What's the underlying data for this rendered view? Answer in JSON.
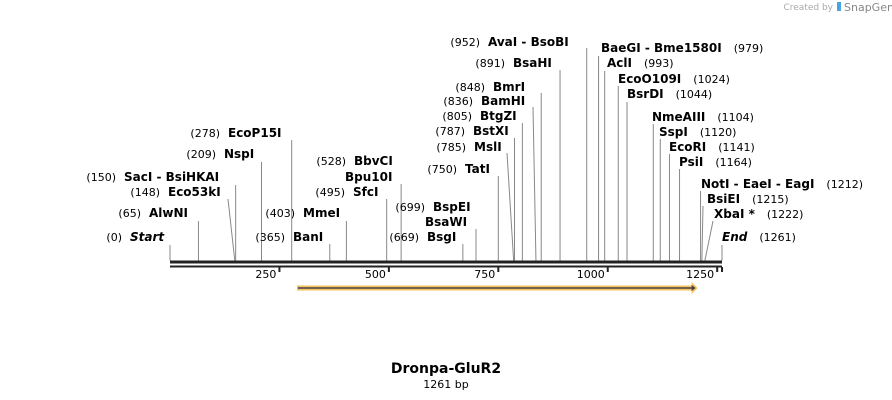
{
  "credit": {
    "prefix": "Created by",
    "brand": "SnapGene"
  },
  "sequence": {
    "name": "Dronpa-GluR2",
    "length_label": "1261 bp",
    "length": 1261
  },
  "ticks": [
    250,
    500,
    750,
    1000,
    1250
  ],
  "feature": {
    "start": 290,
    "end": 1203,
    "color": "#f5c060"
  },
  "sites": [
    {
      "name": "Start",
      "pos": 0,
      "italic": true
    },
    {
      "name": "AlwNI",
      "pos": 65
    },
    {
      "name": "Eco53kI",
      "pos": 148
    },
    {
      "name": "SacI  - BsiHKAI",
      "pos": 150
    },
    {
      "name": "NspI",
      "pos": 209
    },
    {
      "name": "EcoP15I",
      "pos": 278
    },
    {
      "name": "BanI",
      "pos": 365
    },
    {
      "name": "MmeI",
      "pos": 403
    },
    {
      "name": "SfcI",
      "pos": 495
    },
    {
      "name": "Bpu10I",
      "pos": null
    },
    {
      "name": "BbvCI",
      "pos": 528
    },
    {
      "name": "BsgI",
      "pos": 669
    },
    {
      "name": "BsaWI",
      "pos": null
    },
    {
      "name": "BspEI",
      "pos": 699
    },
    {
      "name": "TatI",
      "pos": 750
    },
    {
      "name": "MslI",
      "pos": 785
    },
    {
      "name": "BstXI",
      "pos": 787
    },
    {
      "name": "BtgZI",
      "pos": 805
    },
    {
      "name": "BamHI",
      "pos": 836
    },
    {
      "name": "BmrI",
      "pos": 848
    },
    {
      "name": "BsaHI",
      "pos": 891
    },
    {
      "name": "AvaI  - BsoBI",
      "pos": 952
    },
    {
      "name": "BaeGI  - Bme1580I",
      "pos": 979
    },
    {
      "name": "AclI",
      "pos": 993
    },
    {
      "name": "EcoO109I",
      "pos": 1024
    },
    {
      "name": "BsrDI",
      "pos": 1044
    },
    {
      "name": "NmeAIII",
      "pos": 1104
    },
    {
      "name": "SspI",
      "pos": 1120
    },
    {
      "name": "EcoRI",
      "pos": 1141
    },
    {
      "name": "PsiI",
      "pos": 1164
    },
    {
      "name": "NotI  - EaeI  - EagI",
      "pos": 1212
    },
    {
      "name": "BsiEI",
      "pos": 1215
    },
    {
      "name": "XbaI *",
      "pos": 1222
    },
    {
      "name": "End",
      "pos": 1261,
      "italic": true
    }
  ]
}
